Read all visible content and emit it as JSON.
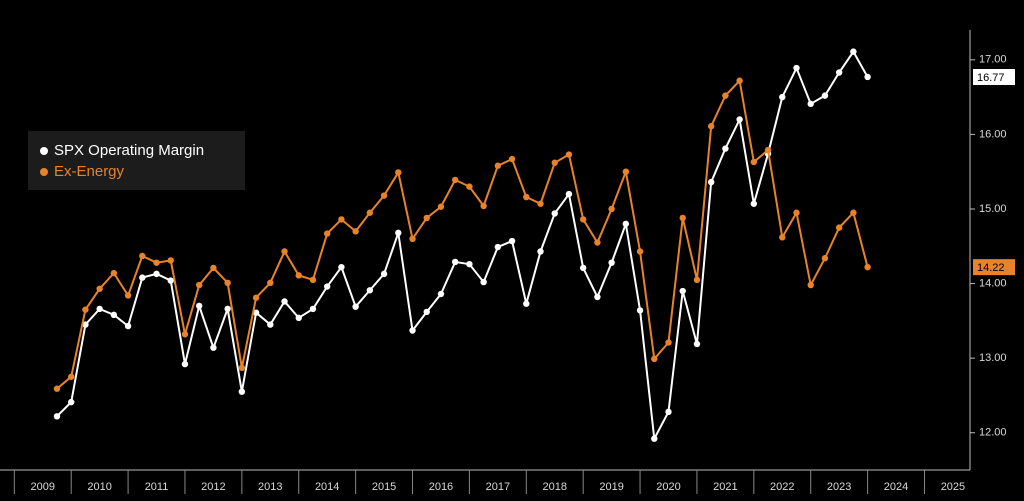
{
  "chart_data": {
    "type": "line",
    "x": [
      2009.75,
      2010,
      2010.25,
      2010.5,
      2010.75,
      2011,
      2011.25,
      2011.5,
      2011.75,
      2012,
      2012.25,
      2012.5,
      2012.75,
      2013,
      2013.25,
      2013.5,
      2013.75,
      2014,
      2014.25,
      2014.5,
      2014.75,
      2015,
      2015.25,
      2015.5,
      2015.75,
      2016,
      2016.25,
      2016.5,
      2016.75,
      2017,
      2017.25,
      2017.5,
      2017.75,
      2018,
      2018.25,
      2018.5,
      2018.75,
      2019,
      2019.25,
      2019.5,
      2019.75,
      2020,
      2020.25,
      2020.5,
      2020.75,
      2021,
      2021.25,
      2021.5,
      2021.75,
      2022,
      2022.25,
      2022.5,
      2022.75,
      2023,
      2023.25,
      2023.5,
      2023.75,
      2024
    ],
    "series": [
      {
        "name": "SPX Operating Margin",
        "color": "#ffffff",
        "values": [
          12.22,
          12.41,
          13.45,
          13.66,
          13.58,
          13.43,
          14.08,
          14.13,
          14.04,
          12.92,
          13.7,
          13.14,
          13.66,
          12.55,
          13.61,
          13.45,
          13.76,
          13.54,
          13.66,
          13.96,
          14.22,
          13.69,
          13.91,
          14.13,
          14.68,
          13.37,
          13.62,
          13.86,
          14.29,
          14.26,
          14.02,
          14.49,
          14.57,
          13.73,
          14.43,
          14.94,
          15.2,
          14.21,
          13.82,
          14.28,
          14.8,
          13.64,
          11.92,
          12.28,
          13.9,
          13.19,
          15.36,
          15.81,
          16.2,
          15.07,
          15.74,
          16.5,
          16.89,
          16.41,
          16.52,
          16.83,
          17.11,
          16.77
        ]
      },
      {
        "name": "Ex-Energy",
        "color": "#e8832a",
        "values": [
          12.59,
          12.75,
          13.65,
          13.93,
          14.14,
          13.84,
          14.37,
          14.28,
          14.31,
          13.32,
          13.98,
          14.21,
          14.01,
          12.87,
          13.81,
          14.01,
          14.43,
          14.11,
          14.05,
          14.67,
          14.86,
          14.7,
          14.95,
          15.18,
          15.49,
          14.6,
          14.88,
          15.03,
          15.39,
          15.3,
          15.04,
          15.58,
          15.67,
          15.16,
          15.07,
          15.62,
          15.73,
          14.86,
          14.55,
          15.0,
          15.5,
          14.43,
          12.99,
          13.21,
          14.88,
          14.05,
          16.11,
          16.52,
          16.72,
          15.63,
          15.79,
          14.62,
          14.95,
          13.98,
          14.34,
          14.75,
          14.95,
          14.22
        ]
      }
    ],
    "xlim": [
      2009.1,
      2025.8
    ],
    "xticks": [
      {
        "value": 2009,
        "label": "2009"
      },
      {
        "value": 2010,
        "label": "2010"
      },
      {
        "value": 2011,
        "label": "2011"
      },
      {
        "value": 2012,
        "label": "2012"
      },
      {
        "value": 2013,
        "label": "2013"
      },
      {
        "value": 2014,
        "label": "2014"
      },
      {
        "value": 2015,
        "label": "2015"
      },
      {
        "value": 2016,
        "label": "2016"
      },
      {
        "value": 2017,
        "label": "2017"
      },
      {
        "value": 2018,
        "label": "2018"
      },
      {
        "value": 2019,
        "label": "2019"
      },
      {
        "value": 2020,
        "label": "2020"
      },
      {
        "value": 2021,
        "label": "2021"
      },
      {
        "value": 2022,
        "label": "2022"
      },
      {
        "value": 2023,
        "label": "2023"
      },
      {
        "value": 2024,
        "label": "2024"
      },
      {
        "value": 2025,
        "label": "2025"
      }
    ],
    "ylim": [
      11.5,
      17.4
    ],
    "yticks": [
      {
        "value": 12,
        "label": "12.00"
      },
      {
        "value": 13,
        "label": "13.00"
      },
      {
        "value": 14,
        "label": "14.00"
      },
      {
        "value": 15,
        "label": "15.00"
      },
      {
        "value": 16,
        "label": "16.00"
      },
      {
        "value": 17,
        "label": "17.00"
      }
    ],
    "legend": "upper left",
    "grid": false
  }
}
